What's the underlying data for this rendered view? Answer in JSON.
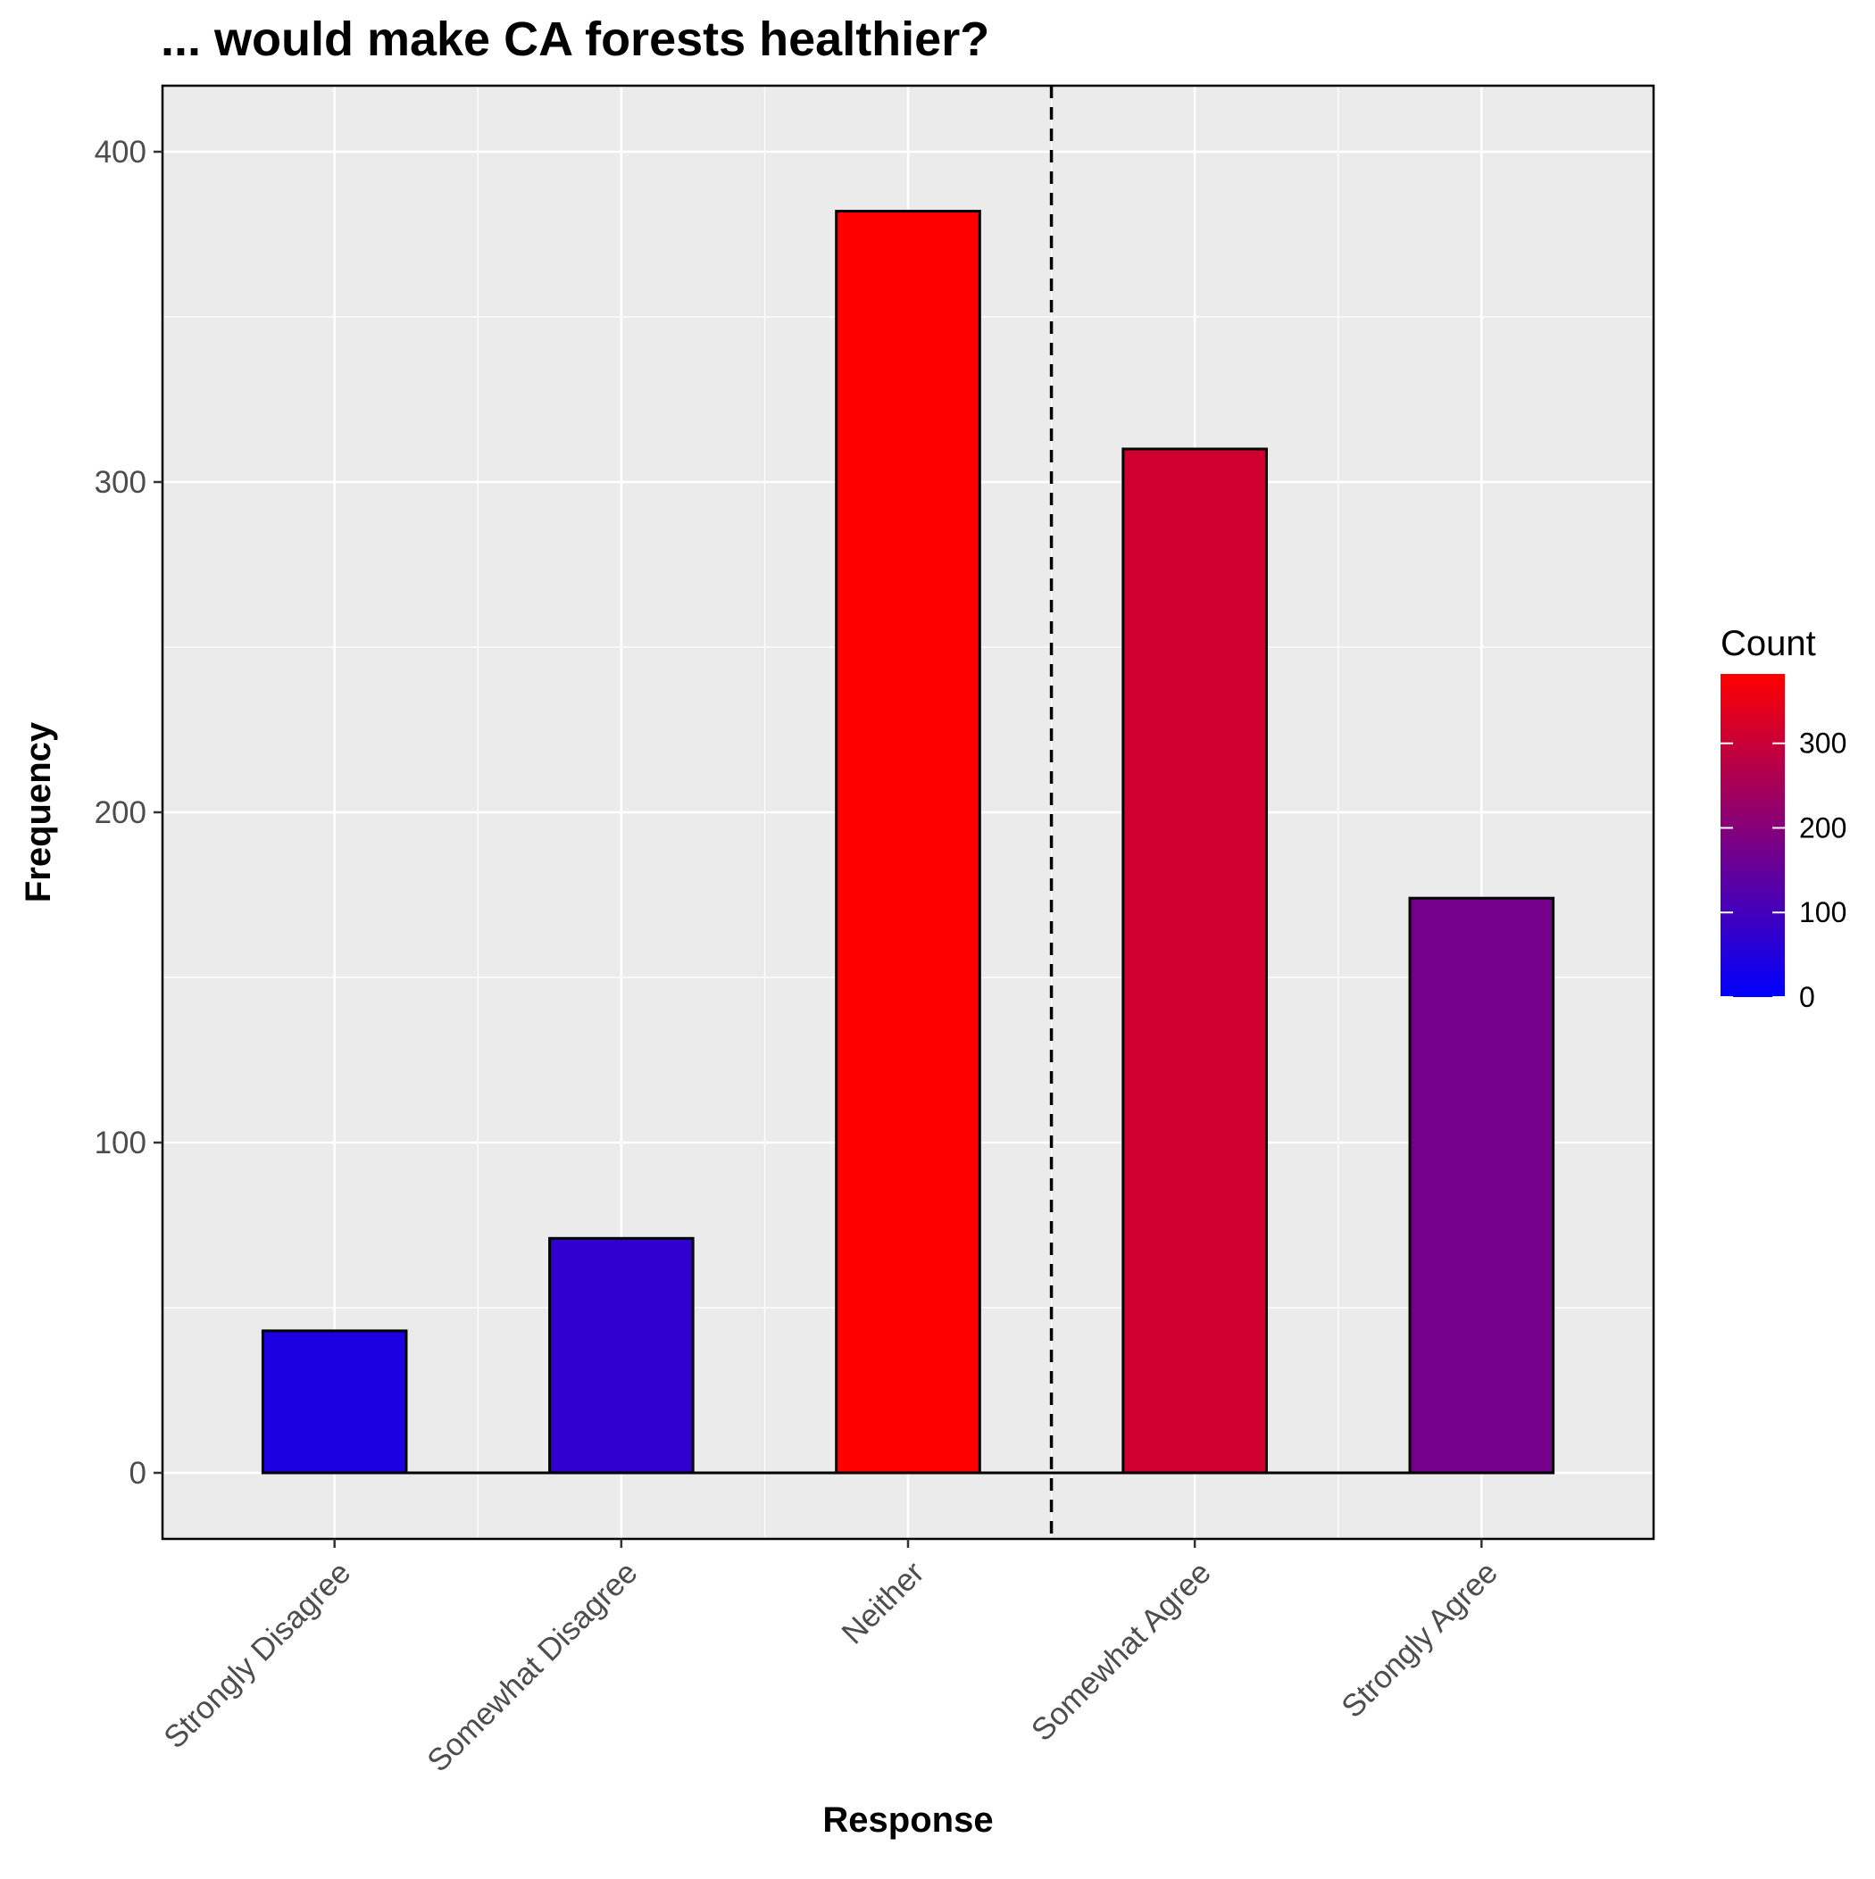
{
  "chart_data": {
    "type": "bar",
    "title": "... would make CA forests healthier?",
    "xlabel": "Response",
    "ylabel": "Frequency",
    "categories": [
      "Strongly Disagree",
      "Somewhat Disagree",
      "Neither",
      "Somewhat Agree",
      "Strongly Agree"
    ],
    "values": [
      43,
      71,
      382,
      310,
      174
    ],
    "ylim": [
      -20,
      420
    ],
    "yticks": [
      0,
      100,
      200,
      300,
      400
    ],
    "grid": true,
    "reference_line": {
      "between": [
        "Neither",
        "Somewhat Agree"
      ],
      "style": "dashed"
    },
    "legend": {
      "title": "Count",
      "type": "colorbar",
      "placement": "right",
      "ticks": [
        0,
        100,
        200,
        300
      ],
      "range": [
        0,
        382
      ],
      "low_color": "#0000ff",
      "high_color": "#ff0000"
    },
    "colors": {
      "panel_background": "#ebebeb",
      "grid": "#ffffff",
      "bar_outline": "#000000"
    }
  }
}
